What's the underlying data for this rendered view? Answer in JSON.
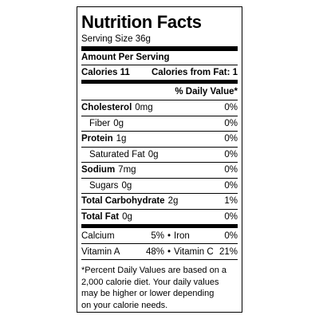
{
  "label": {
    "title": "Nutrition Facts",
    "serving": "Serving Size 36g",
    "amount_header": "Amount Per Serving",
    "calories": "Calories 11",
    "calories_fat": "Calories from Fat: 1",
    "dv_header": "% Daily Value*",
    "nutrients": [
      {
        "name": "Cholesterol",
        "amount": "0mg",
        "dv": "0%",
        "bold": true
      },
      {
        "name": "Fiber",
        "amount": "0g",
        "dv": "0%",
        "bold": false
      },
      {
        "name": "Protein",
        "amount": "1g",
        "dv": "0%",
        "bold": true
      },
      {
        "name": "Saturated Fat",
        "amount": "0g",
        "dv": "0%",
        "bold": false
      },
      {
        "name": "Sodium",
        "amount": "7mg",
        "dv": "0%",
        "bold": true
      },
      {
        "name": "Sugars",
        "amount": "0g",
        "dv": "0%",
        "bold": false
      },
      {
        "name": "Total Carbohydrate",
        "amount": "2g",
        "dv": "1%",
        "bold": true
      },
      {
        "name": "Total Fat",
        "amount": "0g",
        "dv": "0%",
        "bold": true
      }
    ],
    "vitamins": [
      {
        "left_name": "Calcium",
        "left_dv": "5%",
        "right_name": "Iron",
        "right_dv": "0%"
      },
      {
        "left_name": "Vitamin A",
        "left_dv": "48%",
        "right_name": "Vitamin C",
        "right_dv": "21%"
      }
    ],
    "footnote": [
      "*Percent Daily Values are based on a",
      "2,000 calorie diet. Your daily values",
      "may be higher or lower depending",
      "on your calorie needs."
    ]
  }
}
